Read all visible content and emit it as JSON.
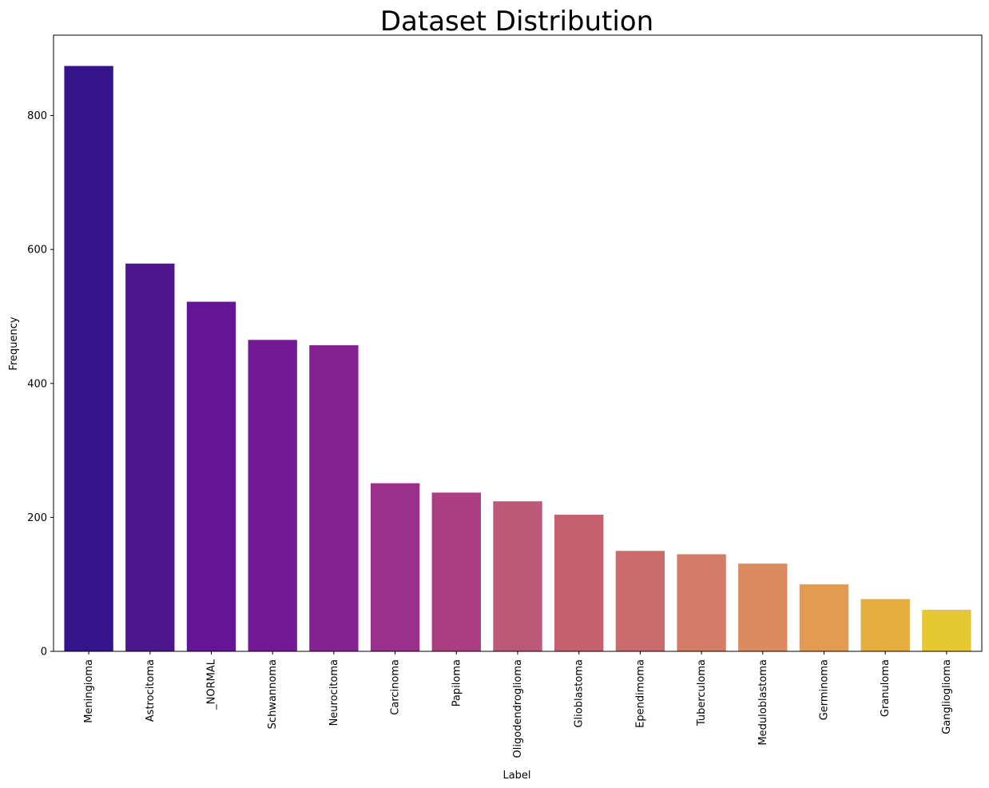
{
  "chart_data": {
    "type": "bar",
    "title": "Dataset Distribution",
    "xlabel": "Label",
    "ylabel": "Frequency",
    "ylim": [
      0,
      920
    ],
    "yticks": [
      0,
      200,
      400,
      600,
      800
    ],
    "grid": false,
    "legend": "none",
    "categories": [
      "Meningioma",
      "Astrocitoma",
      "_NORMAL",
      "Schwannoma",
      "Neurocitoma",
      "Carcinoma",
      "Papiloma",
      "Oligodendroglioma",
      "Glioblastoma",
      "Ependimoma",
      "Tuberculoma",
      "Meduloblastoma",
      "Germinoma",
      "Granuloma",
      "Ganglioglioma"
    ],
    "values": [
      874,
      579,
      522,
      465,
      457,
      251,
      237,
      224,
      204,
      150,
      145,
      131,
      100,
      78,
      62
    ],
    "colors": [
      "#35138a",
      "#4e168d",
      "#641596",
      "#731996",
      "#852292",
      "#9b2f8c",
      "#ab3e83",
      "#bd5978",
      "#c5606f",
      "#cc6b6b",
      "#d47c68",
      "#dc8b60",
      "#e39a51",
      "#e6ad40",
      "#e6c832"
    ]
  }
}
